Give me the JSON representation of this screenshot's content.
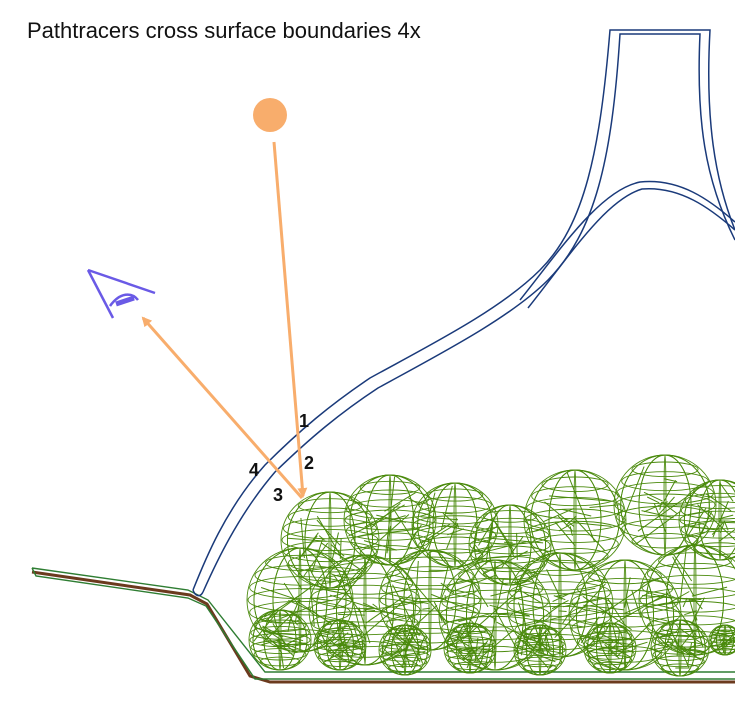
{
  "title": "Pathtracers cross surface boundaries 4x",
  "crossings": [
    {
      "id": "c1",
      "label": "1"
    },
    {
      "id": "c2",
      "label": "2"
    },
    {
      "id": "c3",
      "label": "3"
    },
    {
      "id": "c4",
      "label": "4"
    }
  ],
  "colors": {
    "glass": "#1a3a7a",
    "ray": "#f8ad6c",
    "light": "#f8ad6c",
    "eye": "#6a5ae6",
    "mesh": "#4a8a0c",
    "base_green": "#2e7d32",
    "base_brown": "#6b3a1e"
  },
  "icons": [
    "light-source-icon",
    "eye-icon"
  ]
}
